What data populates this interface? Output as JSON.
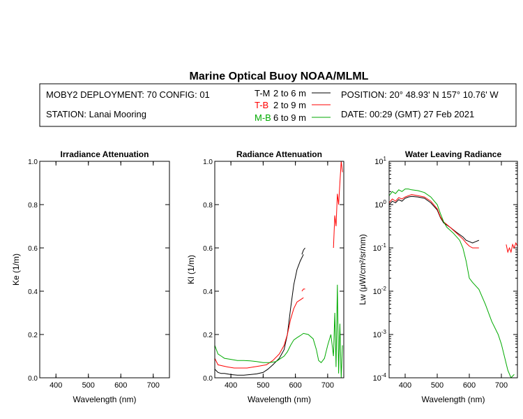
{
  "header": {
    "title": "Marine Optical Buoy NOAA/MLML",
    "deployment": "MOBY2 DEPLOYMENT: 70 CONFIG: 01",
    "station": "STATION: Lanai Mooring",
    "position": "POSITION: 20° 48.93' N   157° 10.76' W",
    "date": "DATE: 00:29 (GMT) 27 Feb 2021",
    "legend": [
      {
        "code": "T-M",
        "range": "2 to 6  m",
        "color": "#000000"
      },
      {
        "code": "T-B",
        "range": "2 to 9  m",
        "color": "#ff0000"
      },
      {
        "code": "M-B",
        "range": "6 to 9  m",
        "color": "#00aa00"
      }
    ]
  },
  "chart_data": [
    {
      "type": "line",
      "title": "Irradiance Attenuation",
      "xlabel": "Wavelength (nm)",
      "ylabel": "Ke  (1/m)",
      "xlim": [
        350,
        750
      ],
      "ylim": [
        0,
        1
      ],
      "xticks": [
        "400",
        "500",
        "600",
        "700"
      ],
      "yticks": [
        "0.0",
        "0.2",
        "0.4",
        "0.6",
        "0.8",
        "1.0"
      ],
      "series": []
    },
    {
      "type": "line",
      "title": "Radiance Attenuation",
      "xlabel": "Wavelength (nm)",
      "ylabel": "Kl  (1/m)",
      "xlim": [
        350,
        750
      ],
      "ylim": [
        0,
        1
      ],
      "xticks": [
        "400",
        "500",
        "600",
        "700"
      ],
      "yticks": [
        "0.0",
        "0.2",
        "0.4",
        "0.6",
        "0.8",
        "1.0"
      ],
      "series": [
        {
          "name": "T-M",
          "color": "#000000",
          "points": [
            [
              350,
              0.04
            ],
            [
              360,
              0.025
            ],
            [
              370,
              0.02
            ],
            [
              380,
              0.02
            ],
            [
              400,
              0.015
            ],
            [
              420,
              0.012
            ],
            [
              440,
              0.012
            ],
            [
              460,
              0.015
            ],
            [
              480,
              0.018
            ],
            [
              500,
              0.025
            ],
            [
              515,
              0.04
            ],
            [
              530,
              0.06
            ],
            [
              550,
              0.09
            ],
            [
              565,
              0.13
            ],
            [
              575,
              0.2
            ],
            [
              585,
              0.32
            ],
            [
              595,
              0.43
            ],
            [
              605,
              0.5
            ],
            [
              615,
              0.54
            ],
            [
              625,
              0.57
            ]
          ]
        },
        {
          "name": "T-M",
          "color": "#000000",
          "points": [
            [
              620,
              0.57
            ],
            [
              625,
              0.59
            ],
            [
              630,
              0.6
            ]
          ]
        },
        {
          "name": "T-B",
          "color": "#ff0000",
          "points": [
            [
              350,
              0.09
            ],
            [
              360,
              0.06
            ],
            [
              375,
              0.055
            ],
            [
              390,
              0.05
            ],
            [
              410,
              0.045
            ],
            [
              430,
              0.045
            ],
            [
              450,
              0.045
            ],
            [
              470,
              0.05
            ],
            [
              490,
              0.055
            ],
            [
              510,
              0.06
            ],
            [
              530,
              0.08
            ],
            [
              550,
              0.11
            ],
            [
              565,
              0.15
            ],
            [
              575,
              0.2
            ],
            [
              585,
              0.27
            ],
            [
              595,
              0.32
            ],
            [
              605,
              0.35
            ],
            [
              615,
              0.36
            ],
            [
              625,
              0.37
            ]
          ]
        },
        {
          "name": "T-B",
          "color": "#ff0000",
          "points": [
            [
              620,
              0.4
            ],
            [
              625,
              0.41
            ],
            [
              630,
              0.41
            ]
          ]
        },
        {
          "name": "T-B",
          "color": "#ff0000",
          "points": [
            [
              718,
              0.6
            ],
            [
              722,
              0.75
            ],
            [
              726,
              0.7
            ],
            [
              730,
              0.85
            ],
            [
              734,
              0.8
            ],
            [
              738,
              0.9
            ],
            [
              742,
              1.0
            ],
            [
              746,
              0.95
            ]
          ]
        },
        {
          "name": "M-B",
          "color": "#00aa00",
          "points": [
            [
              350,
              0.15
            ],
            [
              360,
              0.11
            ],
            [
              370,
              0.1
            ],
            [
              380,
              0.09
            ],
            [
              400,
              0.085
            ],
            [
              420,
              0.08
            ],
            [
              440,
              0.08
            ],
            [
              460,
              0.078
            ],
            [
              480,
              0.075
            ],
            [
              500,
              0.07
            ],
            [
              520,
              0.07
            ],
            [
              540,
              0.075
            ],
            [
              555,
              0.09
            ],
            [
              565,
              0.1
            ],
            [
              575,
              0.12
            ],
            [
              585,
              0.15
            ],
            [
              595,
              0.175
            ],
            [
              605,
              0.185
            ],
            [
              615,
              0.195
            ],
            [
              625,
              0.205
            ],
            [
              640,
              0.2
            ],
            [
              655,
              0.18
            ],
            [
              665,
              0.13
            ],
            [
              672,
              0.08
            ],
            [
              680,
              0.07
            ],
            [
              690,
              0.09
            ],
            [
              700,
              0.15
            ],
            [
              710,
              0.2
            ],
            [
              718,
              0.1
            ],
            [
              722,
              0.3
            ],
            [
              726,
              0.05
            ],
            [
              730,
              0.43
            ],
            [
              734,
              0.02
            ],
            [
              738,
              0.25
            ],
            [
              742,
              0.0
            ],
            [
              746,
              0.15
            ]
          ]
        }
      ]
    },
    {
      "type": "line",
      "title": "Water Leaving Radiance",
      "xlabel": "Wavelength (nm)",
      "ylabel": "Lw  (μW/cm²/sr/nm)",
      "xlim": [
        350,
        750
      ],
      "ylim": [
        0.0001,
        10
      ],
      "yscale": "log",
      "xticks": [
        "400",
        "500",
        "600",
        "700"
      ],
      "yticks": [
        "10¹",
        "10⁰",
        "10⁻¹",
        "10⁻²",
        "10⁻³",
        "10⁻⁴"
      ],
      "series": [
        {
          "name": "T-M",
          "color": "#000000",
          "points": [
            [
              350,
              1.0
            ],
            [
              360,
              1.2
            ],
            [
              370,
              1.1
            ],
            [
              380,
              1.3
            ],
            [
              390,
              1.2
            ],
            [
              400,
              1.4
            ],
            [
              410,
              1.5
            ],
            [
              420,
              1.55
            ],
            [
              440,
              1.5
            ],
            [
              460,
              1.4
            ],
            [
              480,
              1.1
            ],
            [
              500,
              0.75
            ],
            [
              510,
              0.5
            ],
            [
              520,
              0.38
            ],
            [
              540,
              0.3
            ],
            [
              560,
              0.23
            ],
            [
              580,
              0.18
            ],
            [
              590,
              0.15
            ],
            [
              600,
              0.14
            ],
            [
              610,
              0.13
            ],
            [
              620,
              0.14
            ],
            [
              630,
              0.15
            ]
          ]
        },
        {
          "name": "T-B",
          "color": "#ff0000",
          "points": [
            [
              350,
              1.1
            ],
            [
              360,
              1.35
            ],
            [
              370,
              1.2
            ],
            [
              380,
              1.45
            ],
            [
              390,
              1.35
            ],
            [
              400,
              1.5
            ],
            [
              410,
              1.6
            ],
            [
              420,
              1.7
            ],
            [
              440,
              1.6
            ],
            [
              460,
              1.5
            ],
            [
              480,
              1.2
            ],
            [
              500,
              0.8
            ],
            [
              510,
              0.52
            ],
            [
              520,
              0.4
            ],
            [
              540,
              0.3
            ],
            [
              560,
              0.22
            ],
            [
              580,
              0.16
            ],
            [
              590,
              0.13
            ],
            [
              600,
              0.11
            ],
            [
              610,
              0.1
            ],
            [
              620,
              0.1
            ],
            [
              630,
              0.1
            ]
          ]
        },
        {
          "name": "T-B",
          "color": "#ff0000",
          "points": [
            [
              715,
              0.12
            ],
            [
              720,
              0.08
            ],
            [
              725,
              0.1
            ],
            [
              730,
              0.08
            ],
            [
              735,
              0.12
            ],
            [
              740,
              0.1
            ],
            [
              745,
              0.13
            ],
            [
              750,
              0.11
            ]
          ]
        },
        {
          "name": "M-B",
          "color": "#00aa00",
          "points": [
            [
              350,
              1.6
            ],
            [
              360,
              2.0
            ],
            [
              370,
              1.8
            ],
            [
              380,
              2.2
            ],
            [
              390,
              2.0
            ],
            [
              400,
              2.3
            ],
            [
              410,
              2.3
            ],
            [
              420,
              2.2
            ],
            [
              440,
              2.1
            ],
            [
              460,
              1.9
            ],
            [
              480,
              1.5
            ],
            [
              500,
              1.0
            ],
            [
              510,
              0.62
            ],
            [
              520,
              0.4
            ],
            [
              530,
              0.3
            ],
            [
              550,
              0.22
            ],
            [
              570,
              0.15
            ],
            [
              580,
              0.1
            ],
            [
              590,
              0.05
            ],
            [
              600,
              0.02
            ],
            [
              610,
              0.016
            ],
            [
              630,
              0.011
            ],
            [
              650,
              0.005
            ],
            [
              670,
              0.002
            ],
            [
              690,
              0.001
            ],
            [
              700,
              0.0006
            ],
            [
              710,
              0.0003
            ],
            [
              720,
              0.00015
            ],
            [
              730,
              0.0001
            ],
            [
              740,
              0.00012
            ]
          ]
        }
      ]
    }
  ]
}
